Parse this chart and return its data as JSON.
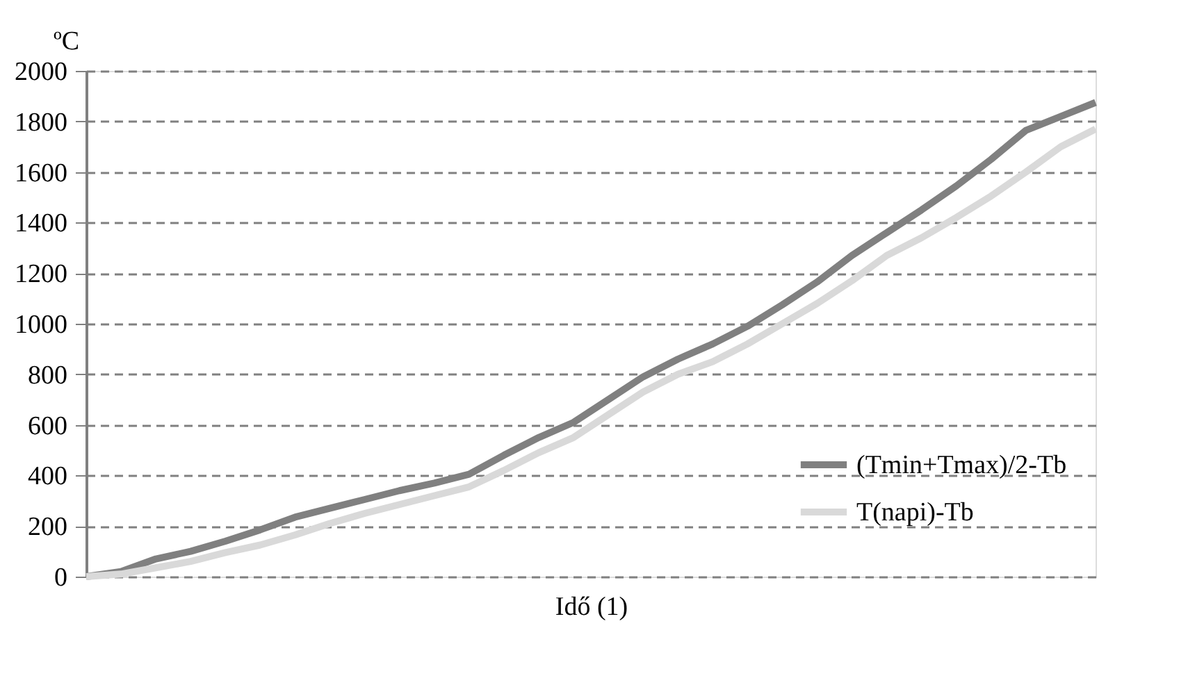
{
  "chart_data": {
    "type": "line",
    "ylabel": "ºC",
    "xlabel": "Idő (1)",
    "categories": [
      null,
      null,
      null,
      null,
      null,
      null,
      null,
      null,
      null,
      null,
      null,
      null,
      null,
      null,
      null,
      null,
      null,
      null,
      null,
      null,
      null,
      null,
      null,
      null,
      null,
      null,
      null,
      null,
      null,
      null
    ],
    "series": [
      {
        "name": "(Tmin+Tmax)/2-Tb",
        "color": "#808080",
        "values": [
          0,
          20,
          70,
          100,
          140,
          185,
          235,
          270,
          305,
          340,
          370,
          405,
          480,
          550,
          610,
          700,
          790,
          860,
          920,
          990,
          1075,
          1165,
          1270,
          1360,
          1450,
          1545,
          1650,
          1765,
          1820,
          1875
        ]
      },
      {
        "name": "T(napi)-Tb",
        "color": "#d9d9d9",
        "values": [
          0,
          10,
          35,
          60,
          95,
          125,
          165,
          210,
          250,
          285,
          320,
          355,
          420,
          490,
          550,
          640,
          730,
          800,
          850,
          920,
          1000,
          1080,
          1170,
          1270,
          1340,
          1420,
          1505,
          1600,
          1700,
          1770
        ]
      }
    ],
    "ylim": [
      0,
      2000
    ],
    "yticks": [
      0,
      200,
      400,
      600,
      800,
      1000,
      1200,
      1400,
      1600,
      1800,
      2000
    ],
    "grid": "y",
    "legend": "right",
    "marker": "none",
    "line_style": "solid",
    "tick_labels": "y"
  }
}
